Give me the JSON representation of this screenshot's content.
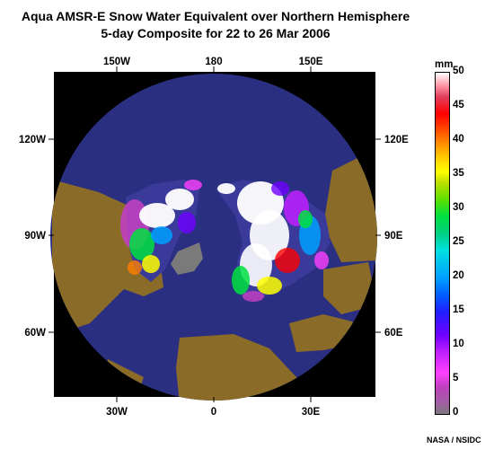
{
  "title": {
    "line1": "Aqua AMSR-E Snow Water Equivalent over Northern Hemisphere",
    "line2": "5-day Composite for 22 to 26 Mar 2006"
  },
  "map": {
    "projection": "north-polar-stereographic",
    "colors": {
      "ocean": "#2b2f82",
      "land_bare": "#8a6c28",
      "space": "#000000",
      "no_data": "#7a7a7a",
      "snow_high": "#ffffff"
    },
    "longitude_labels": {
      "top": [
        "150W",
        "180",
        "150E"
      ],
      "left": [
        "120W",
        "90W",
        "60W"
      ],
      "right": [
        "120E",
        "90E",
        "60E"
      ],
      "bottom": [
        "30W",
        "0",
        "30E"
      ]
    }
  },
  "colorbar": {
    "unit": "mm",
    "min": 0,
    "max": 50,
    "ticks": [
      "0",
      "5",
      "10",
      "15",
      "20",
      "25",
      "30",
      "35",
      "40",
      "45",
      "50"
    ]
  },
  "credit": "NASA / NSIDC"
}
